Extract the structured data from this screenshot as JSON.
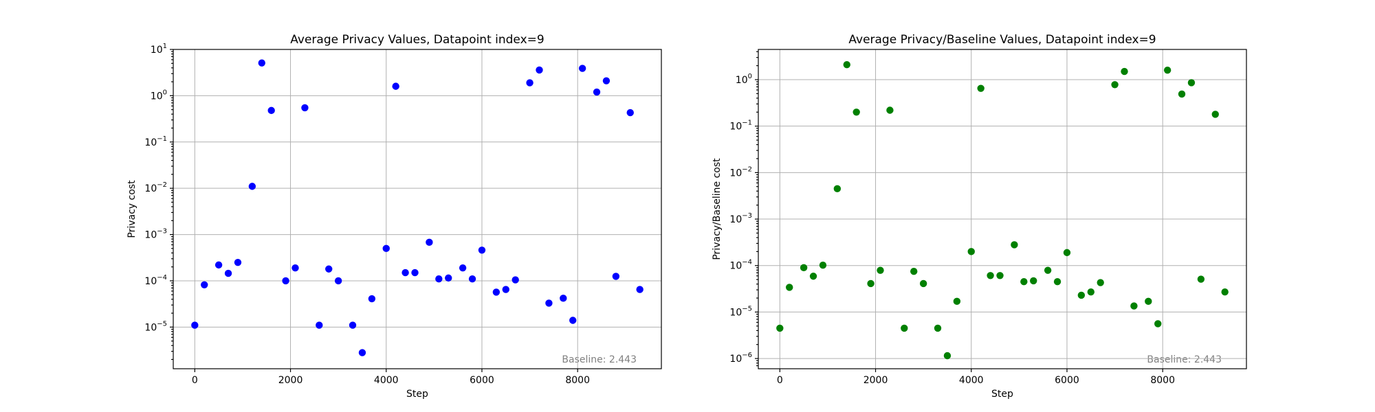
{
  "colors": {
    "left_points": "#0000ff",
    "right_points": "#008000",
    "grid": "#b0b0b0",
    "annotation": "#808080"
  },
  "chart_data": [
    {
      "type": "scatter",
      "title": "Average Privacy Values, Datapoint index=9",
      "xlabel": "Step",
      "ylabel": "Privacy cost",
      "annotation": "Baseline: 2.443",
      "yscale": "log",
      "xlim": [
        -450,
        9750
      ],
      "ylim_exp": [
        -5.9,
        1.0
      ],
      "grid": true,
      "x_ticks": [
        0,
        2000,
        4000,
        6000,
        8000
      ],
      "y_ticks_exp": [
        -5,
        -4,
        -3,
        -2,
        -1,
        0,
        1
      ],
      "points": [
        {
          "x": 0,
          "y": 1.1e-05
        },
        {
          "x": 200,
          "y": 8.2e-05
        },
        {
          "x": 500,
          "y": 0.00022
        },
        {
          "x": 700,
          "y": 0.000145
        },
        {
          "x": 900,
          "y": 0.00025
        },
        {
          "x": 1200,
          "y": 0.011
        },
        {
          "x": 1400,
          "y": 5.1
        },
        {
          "x": 1600,
          "y": 0.48
        },
        {
          "x": 1900,
          "y": 0.0001
        },
        {
          "x": 2100,
          "y": 0.00019
        },
        {
          "x": 2300,
          "y": 0.55
        },
        {
          "x": 2600,
          "y": 1.1e-05
        },
        {
          "x": 2800,
          "y": 0.00018
        },
        {
          "x": 3000,
          "y": 0.0001
        },
        {
          "x": 3300,
          "y": 1.1e-05
        },
        {
          "x": 3500,
          "y": 2.8e-06
        },
        {
          "x": 3700,
          "y": 4.1e-05
        },
        {
          "x": 4000,
          "y": 0.0005
        },
        {
          "x": 4200,
          "y": 1.6
        },
        {
          "x": 4400,
          "y": 0.00015
        },
        {
          "x": 4600,
          "y": 0.00015
        },
        {
          "x": 4900,
          "y": 0.00068
        },
        {
          "x": 5100,
          "y": 0.00011
        },
        {
          "x": 5300,
          "y": 0.000115
        },
        {
          "x": 5600,
          "y": 0.00019
        },
        {
          "x": 5800,
          "y": 0.00011
        },
        {
          "x": 6000,
          "y": 0.00046
        },
        {
          "x": 6300,
          "y": 5.7e-05
        },
        {
          "x": 6500,
          "y": 6.5e-05
        },
        {
          "x": 6700,
          "y": 0.000105
        },
        {
          "x": 7000,
          "y": 1.9
        },
        {
          "x": 7200,
          "y": 3.6
        },
        {
          "x": 7400,
          "y": 3.3e-05
        },
        {
          "x": 7700,
          "y": 4.2e-05
        },
        {
          "x": 7900,
          "y": 1.4e-05
        },
        {
          "x": 8100,
          "y": 3.9
        },
        {
          "x": 8400,
          "y": 1.2
        },
        {
          "x": 8600,
          "y": 2.1
        },
        {
          "x": 8800,
          "y": 0.000125
        },
        {
          "x": 9100,
          "y": 0.43
        },
        {
          "x": 9300,
          "y": 6.5e-05
        }
      ]
    },
    {
      "type": "scatter",
      "title": "Average Privacy/Baseline Values, Datapoint index=9",
      "xlabel": "Step",
      "ylabel": "Privacy/Baseline cost",
      "annotation": "Baseline: 2.443",
      "yscale": "log",
      "xlim": [
        -450,
        9750
      ],
      "ylim_exp": [
        -6.22,
        0.65
      ],
      "grid": true,
      "x_ticks": [
        0,
        2000,
        4000,
        6000,
        8000
      ],
      "y_ticks_exp": [
        -6,
        -5,
        -4,
        -3,
        -2,
        -1,
        0
      ],
      "points": [
        {
          "x": 0,
          "y": 4.5e-06
        },
        {
          "x": 200,
          "y": 3.4e-05
        },
        {
          "x": 500,
          "y": 9e-05
        },
        {
          "x": 700,
          "y": 5.9e-05
        },
        {
          "x": 900,
          "y": 0.000102
        },
        {
          "x": 1200,
          "y": 0.0045
        },
        {
          "x": 1400,
          "y": 2.1
        },
        {
          "x": 1600,
          "y": 0.2
        },
        {
          "x": 1900,
          "y": 4.1e-05
        },
        {
          "x": 2100,
          "y": 7.9e-05
        },
        {
          "x": 2300,
          "y": 0.22
        },
        {
          "x": 2600,
          "y": 4.5e-06
        },
        {
          "x": 2800,
          "y": 7.5e-05
        },
        {
          "x": 3000,
          "y": 4.1e-05
        },
        {
          "x": 3300,
          "y": 4.5e-06
        },
        {
          "x": 3500,
          "y": 1.15e-06
        },
        {
          "x": 3700,
          "y": 1.7e-05
        },
        {
          "x": 4000,
          "y": 0.0002
        },
        {
          "x": 4200,
          "y": 0.65
        },
        {
          "x": 4400,
          "y": 6.1e-05
        },
        {
          "x": 4600,
          "y": 6.1e-05
        },
        {
          "x": 4900,
          "y": 0.00028
        },
        {
          "x": 5100,
          "y": 4.5e-05
        },
        {
          "x": 5300,
          "y": 4.7e-05
        },
        {
          "x": 5600,
          "y": 7.9e-05
        },
        {
          "x": 5800,
          "y": 4.5e-05
        },
        {
          "x": 6000,
          "y": 0.00019
        },
        {
          "x": 6300,
          "y": 2.3e-05
        },
        {
          "x": 6500,
          "y": 2.7e-05
        },
        {
          "x": 6700,
          "y": 4.3e-05
        },
        {
          "x": 7000,
          "y": 0.78
        },
        {
          "x": 7200,
          "y": 1.5
        },
        {
          "x": 7400,
          "y": 1.35e-05
        },
        {
          "x": 7700,
          "y": 1.7e-05
        },
        {
          "x": 7900,
          "y": 5.6e-06
        },
        {
          "x": 8100,
          "y": 1.6
        },
        {
          "x": 8400,
          "y": 0.49
        },
        {
          "x": 8600,
          "y": 0.86
        },
        {
          "x": 8800,
          "y": 5.1e-05
        },
        {
          "x": 9100,
          "y": 0.18
        },
        {
          "x": 9300,
          "y": 2.7e-05
        }
      ]
    }
  ]
}
